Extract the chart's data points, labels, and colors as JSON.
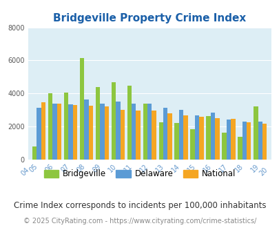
{
  "title": "Bridgeville Property Crime Index",
  "years": [
    2004,
    2005,
    2006,
    2007,
    2008,
    2009,
    2010,
    2011,
    2012,
    2013,
    2014,
    2015,
    2016,
    2017,
    2018,
    2019,
    2020
  ],
  "bridgeville": [
    null,
    800,
    4000,
    4050,
    6150,
    4400,
    4680,
    4470,
    3400,
    2270,
    2220,
    1850,
    2620,
    1620,
    1380,
    3200,
    null
  ],
  "delaware": [
    null,
    3150,
    3400,
    3350,
    3620,
    3370,
    3520,
    3400,
    3380,
    3150,
    3020,
    2680,
    2850,
    2440,
    2310,
    2280,
    null
  ],
  "national": [
    null,
    3480,
    3380,
    3300,
    3250,
    3220,
    3030,
    2980,
    2950,
    2790,
    2660,
    2590,
    2500,
    2450,
    2260,
    2170,
    null
  ],
  "bar_colors": {
    "bridgeville": "#8dc63f",
    "delaware": "#5b9bd5",
    "national": "#f5a623"
  },
  "ylim": [
    0,
    8000
  ],
  "yticks": [
    0,
    2000,
    4000,
    6000,
    8000
  ],
  "bg_color": "#ddeef5",
  "footnote1": "Crime Index corresponds to incidents per 100,000 inhabitants",
  "footnote2": "© 2025 CityRating.com - https://www.cityrating.com/crime-statistics/",
  "title_color": "#1a5fa8",
  "footnote1_color": "#333333",
  "footnote2_color": "#888888",
  "footnote1_size": 8.5,
  "footnote2_size": 7.0,
  "title_size": 11
}
